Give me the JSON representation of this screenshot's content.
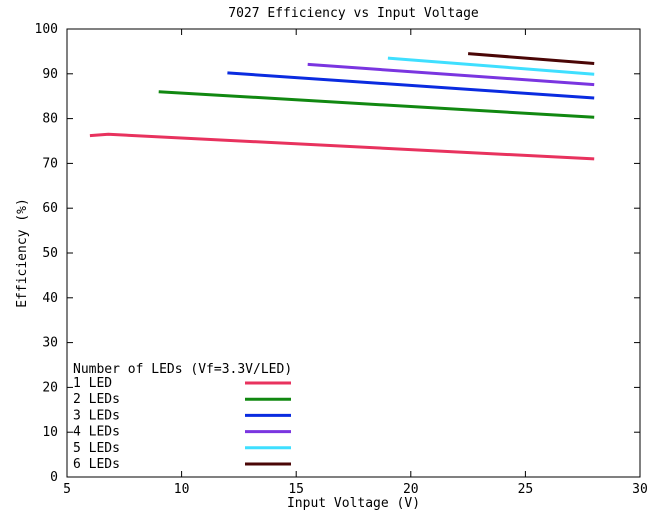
{
  "chart_data": {
    "type": "line",
    "title": "7027 Efficiency vs Input Voltage",
    "xlabel": "Input Voltage (V)",
    "ylabel": "Efficiency (%)",
    "xlim": [
      5,
      30
    ],
    "ylim": [
      0,
      100
    ],
    "xticks": [
      5,
      10,
      15,
      20,
      25,
      30
    ],
    "yticks": [
      0,
      10,
      20,
      30,
      40,
      50,
      60,
      70,
      80,
      90,
      100
    ],
    "grid": false,
    "legend_title": "Number of LEDs (Vf=3.3V/LED)",
    "legend_position": "bottom-left",
    "series": [
      {
        "name": "1 LED",
        "color": "#e8325e",
        "x": [
          6.0,
          6.8,
          28.0
        ],
        "y": [
          76.2,
          76.5,
          71.0
        ]
      },
      {
        "name": "2 LEDs",
        "color": "#118811",
        "x": [
          9.0,
          28.0
        ],
        "y": [
          86.0,
          80.3
        ]
      },
      {
        "name": "3 LEDs",
        "color": "#0a2be0",
        "x": [
          12.0,
          28.0
        ],
        "y": [
          90.2,
          84.6
        ]
      },
      {
        "name": "4 LEDs",
        "color": "#7a35e0",
        "x": [
          15.5,
          28.0
        ],
        "y": [
          92.1,
          87.6
        ]
      },
      {
        "name": "5 LEDs",
        "color": "#3fdfff",
        "x": [
          19.0,
          28.0
        ],
        "y": [
          93.5,
          89.9
        ]
      },
      {
        "name": "6 LEDs",
        "color": "#4a0606",
        "x": [
          22.5,
          28.0
        ],
        "y": [
          94.5,
          92.3
        ]
      }
    ]
  }
}
